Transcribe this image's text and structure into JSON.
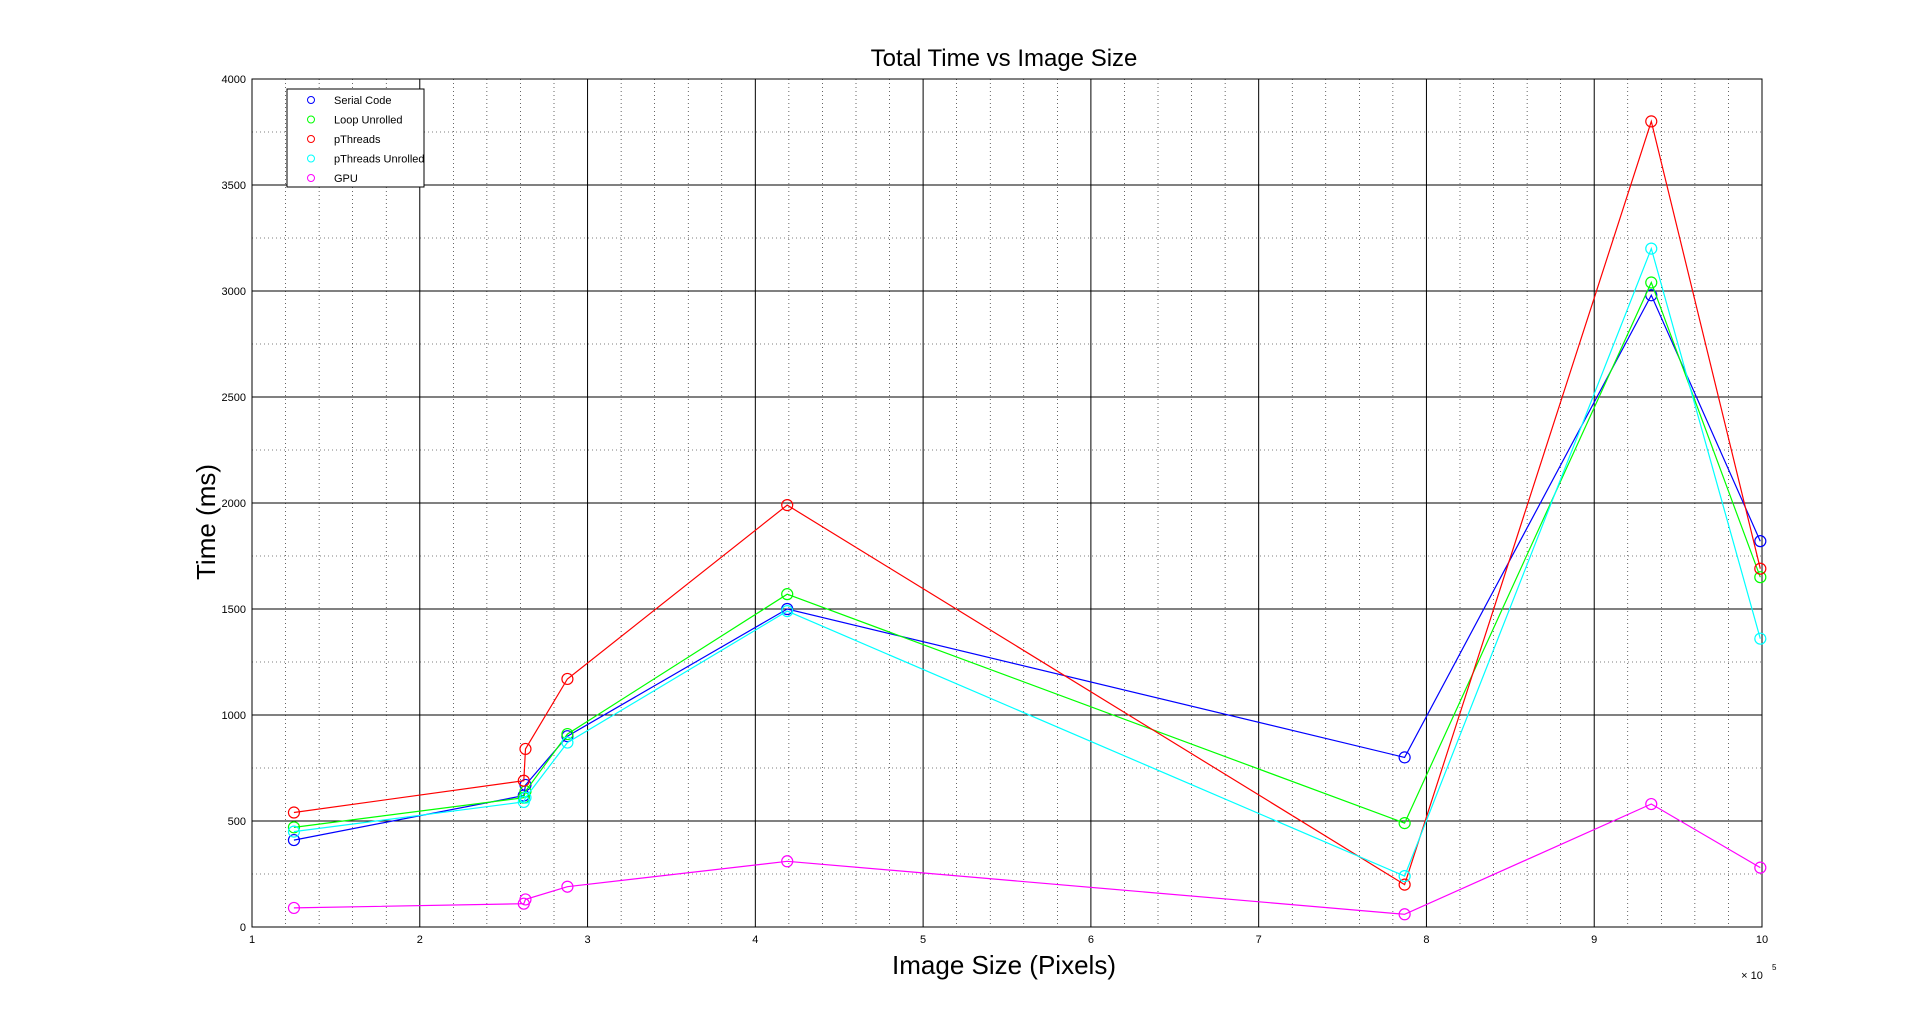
{
  "chart_data": {
    "type": "line",
    "title": "Total Time vs Image Size",
    "xlabel": "Image Size (Pixels)",
    "ylabel": "Time (ms)",
    "x_exponent_label": "× 10",
    "x_exponent_power": "5",
    "xlim": [
      1,
      10
    ],
    "ylim": [
      0,
      4000
    ],
    "x_ticks": [
      "1",
      "2",
      "3",
      "4",
      "5",
      "6",
      "7",
      "8",
      "9",
      "10"
    ],
    "y_ticks": [
      "0",
      "500",
      "1000",
      "1500",
      "2000",
      "2500",
      "3000",
      "3500",
      "4000"
    ],
    "grid": true,
    "legend_position": "top-left",
    "x": [
      1.25,
      2.62,
      2.63,
      2.88,
      4.19,
      7.87,
      9.34,
      9.99
    ],
    "series": [
      {
        "name": "Serial Code",
        "color": "#0000ff",
        "values": [
          410,
          620,
          670,
          900,
          1500,
          800,
          2980,
          1820
        ]
      },
      {
        "name": "Loop Unrolled",
        "color": "#00ff00",
        "values": [
          470,
          610,
          640,
          910,
          1570,
          490,
          3040,
          1650
        ]
      },
      {
        "name": "pThreads",
        "color": "#ff0000",
        "values": [
          540,
          690,
          840,
          1170,
          1990,
          200,
          3800,
          1690
        ]
      },
      {
        "name": "pThreads Unrolled",
        "color": "#00ffff",
        "values": [
          450,
          590,
          610,
          870,
          1490,
          240,
          3200,
          1360
        ]
      },
      {
        "name": "GPU",
        "color": "#ff00ff",
        "values": [
          90,
          110,
          130,
          190,
          310,
          60,
          580,
          280
        ]
      }
    ]
  }
}
